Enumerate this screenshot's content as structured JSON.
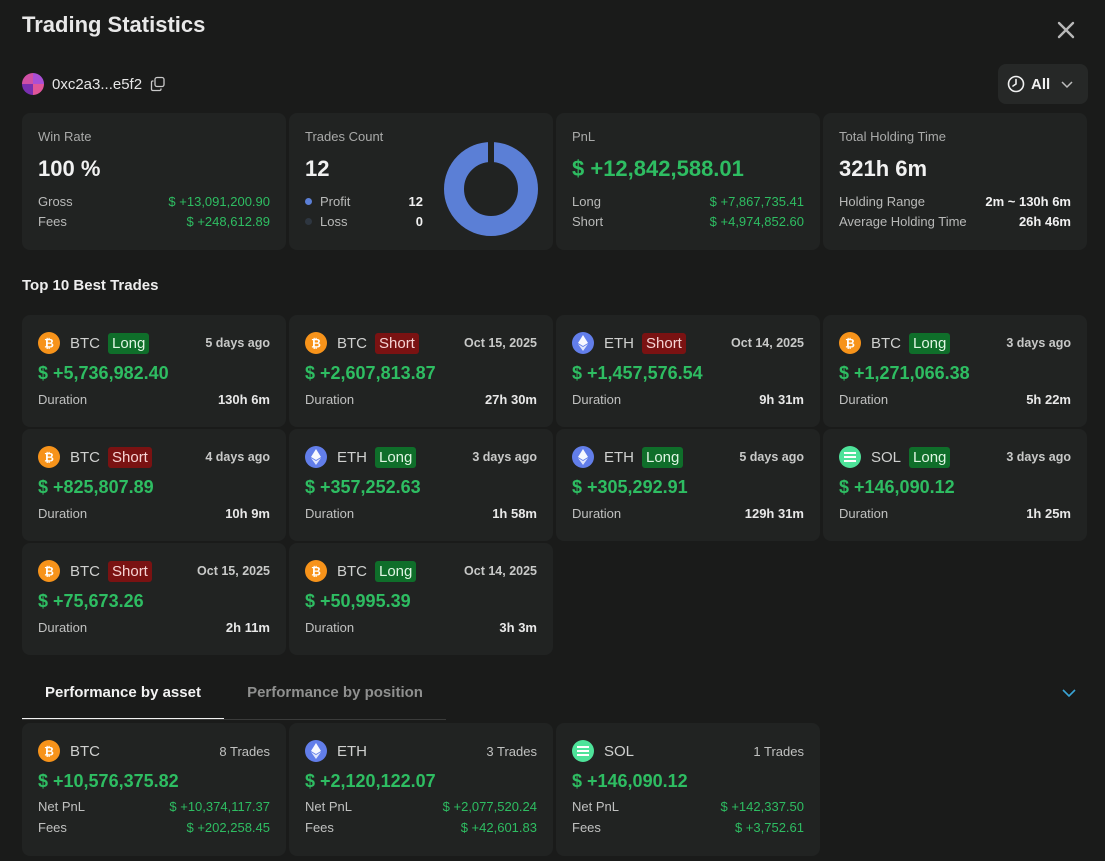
{
  "header": {
    "title": "Trading Statistics",
    "close_icon": "close-icon"
  },
  "account": {
    "address": "0xc2a3...e5f2"
  },
  "filter": {
    "label": "All"
  },
  "stats": {
    "win_rate": {
      "label": "Win Rate",
      "value": "100 %",
      "gross_label": "Gross",
      "gross_value": "$ +13,091,200.90",
      "fees_label": "Fees",
      "fees_value": "$ +248,612.89"
    },
    "trades_count": {
      "label": "Trades Count",
      "value": "12",
      "profit_label": "Profit",
      "profit_value": "12",
      "loss_label": "Loss",
      "loss_value": "0",
      "profit_fraction": 1.0,
      "profit_color": "#5b7fd6",
      "loss_color": "#2e3640"
    },
    "pnl": {
      "label": "PnL",
      "value": "$ +12,842,588.01",
      "long_label": "Long",
      "long_value": "$ +7,867,735.41",
      "short_label": "Short",
      "short_value": "$ +4,974,852.60"
    },
    "holding": {
      "label": "Total Holding Time",
      "value": "321h 6m",
      "range_label": "Holding Range",
      "range_value": "2m ~ 130h 6m",
      "avg_label": "Average Holding Time",
      "avg_value": "26h 46m"
    }
  },
  "top_trades": {
    "title": "Top 10 Best Trades",
    "duration_label": "Duration",
    "items": [
      {
        "coin": "BTC",
        "side": "Long",
        "date": "5 days ago",
        "pnl": "$ +5,736,982.40",
        "duration": "130h 6m"
      },
      {
        "coin": "BTC",
        "side": "Short",
        "date": "Oct 15, 2025",
        "pnl": "$ +2,607,813.87",
        "duration": "27h 30m"
      },
      {
        "coin": "ETH",
        "side": "Short",
        "date": "Oct 14, 2025",
        "pnl": "$ +1,457,576.54",
        "duration": "9h 31m"
      },
      {
        "coin": "BTC",
        "side": "Long",
        "date": "3 days ago",
        "pnl": "$ +1,271,066.38",
        "duration": "5h 22m"
      },
      {
        "coin": "BTC",
        "side": "Short",
        "date": "4 days ago",
        "pnl": "$ +825,807.89",
        "duration": "10h 9m"
      },
      {
        "coin": "ETH",
        "side": "Long",
        "date": "3 days ago",
        "pnl": "$ +357,252.63",
        "duration": "1h 58m"
      },
      {
        "coin": "ETH",
        "side": "Long",
        "date": "5 days ago",
        "pnl": "$ +305,292.91",
        "duration": "129h 31m"
      },
      {
        "coin": "SOL",
        "side": "Long",
        "date": "3 days ago",
        "pnl": "$ +146,090.12",
        "duration": "1h 25m"
      },
      {
        "coin": "BTC",
        "side": "Short",
        "date": "Oct 15, 2025",
        "pnl": "$ +75,673.26",
        "duration": "2h 11m"
      },
      {
        "coin": "BTC",
        "side": "Long",
        "date": "Oct 14, 2025",
        "pnl": "$ +50,995.39",
        "duration": "3h 3m"
      }
    ]
  },
  "tabs": {
    "asset": "Performance by asset",
    "position": "Performance by position"
  },
  "assets": {
    "net_label": "Net PnL",
    "fees_label": "Fees",
    "items": [
      {
        "coin": "BTC",
        "trades": "8 Trades",
        "pnl": "$ +10,576,375.82",
        "net": "$ +10,374,117.37",
        "fees": "$ +202,258.45"
      },
      {
        "coin": "ETH",
        "trades": "3 Trades",
        "pnl": "$ +2,120,122.07",
        "net": "$ +2,077,520.24",
        "fees": "$ +42,601.83"
      },
      {
        "coin": "SOL",
        "trades": "1 Trades",
        "pnl": "$ +146,090.12",
        "net": "$ +142,337.50",
        "fees": "$ +3,752.61"
      }
    ]
  },
  "colors": {
    "green": "#2ebd62",
    "btc": "#f7931a",
    "eth": "#627eea",
    "sol": "#4ee39a"
  }
}
